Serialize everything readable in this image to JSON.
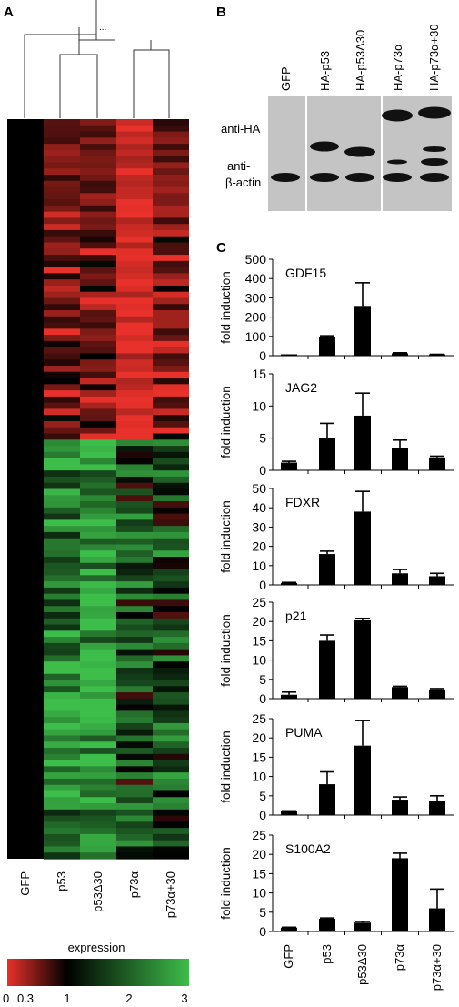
{
  "panel_labels": {
    "a": "A",
    "b": "B",
    "c": "C"
  },
  "heatmap": {
    "columns": [
      "GFP",
      "p53",
      "p53Δ30",
      "p73α",
      "p73α+30"
    ],
    "dendrogram_ellipsis": "...",
    "legend_title": "expression",
    "legend_ticks": [
      "0",
      "0.3",
      "1",
      "2",
      "3"
    ],
    "colors": {
      "low": "#e8312a",
      "mid": "#000000",
      "high": "#3dbd4a"
    }
  },
  "western": {
    "lanes": [
      "GFP",
      "HA-p53",
      "HA-p53Δ30",
      "HA-p73α",
      "HA-p73α+30"
    ],
    "row_labels": [
      "anti-HA",
      "anti-",
      "β-actin"
    ]
  },
  "bar_axis": {
    "ylabel": "fold induction",
    "categories": [
      "GFP",
      "p53",
      "p53Δ30",
      "p73α",
      "p73α+30"
    ]
  },
  "chart_data": [
    {
      "type": "bar",
      "title": "GDF15",
      "ylabel": "fold induction",
      "categories": [
        "GFP",
        "p53",
        "p53Δ30",
        "p73α",
        "p73α+30"
      ],
      "values": [
        1,
        95,
        258,
        12,
        5
      ],
      "errors": [
        0,
        8,
        120,
        3,
        2
      ],
      "ylim": [
        0,
        500
      ],
      "yticks": [
        "0",
        "100",
        "200",
        "300",
        "400",
        "500"
      ]
    },
    {
      "type": "bar",
      "title": "JAG2",
      "ylabel": "fold induction",
      "categories": [
        "GFP",
        "p53",
        "p53Δ30",
        "p73α",
        "p73α+30"
      ],
      "values": [
        1.2,
        5,
        8.5,
        3.5,
        2
      ],
      "errors": [
        0.2,
        2.3,
        3.5,
        1.2,
        0.2
      ],
      "ylim": [
        0,
        15
      ],
      "yticks": [
        "0",
        "5",
        "10",
        "15"
      ]
    },
    {
      "type": "bar",
      "title": "FDXR",
      "ylabel": "fold induction",
      "categories": [
        "GFP",
        "p53",
        "p53Δ30",
        "p73α",
        "p73α+30"
      ],
      "values": [
        1,
        16,
        38,
        6,
        4.5
      ],
      "errors": [
        0.3,
        1.5,
        10.5,
        2,
        1.5
      ],
      "ylim": [
        0,
        50
      ],
      "yticks": [
        "0",
        "10",
        "20",
        "30",
        "40",
        "50"
      ]
    },
    {
      "type": "bar",
      "title": "p21",
      "ylabel": "fold induction",
      "categories": [
        "GFP",
        "p53",
        "p53Δ30",
        "p73α",
        "p73α+30"
      ],
      "values": [
        1,
        15,
        20.3,
        3,
        2.4
      ],
      "errors": [
        0.7,
        1.5,
        0.5,
        0.2,
        0.2
      ],
      "ylim": [
        0,
        25
      ],
      "yticks": [
        "0",
        "5",
        "10",
        "15",
        "20",
        "25"
      ]
    },
    {
      "type": "bar",
      "title": "PUMA",
      "ylabel": "fold induction",
      "categories": [
        "GFP",
        "p53",
        "p53Δ30",
        "p73α",
        "p73α+30"
      ],
      "values": [
        1,
        8,
        18,
        4,
        3.7
      ],
      "errors": [
        0.1,
        3.2,
        6.5,
        0.7,
        1.3
      ],
      "ylim": [
        0,
        25
      ],
      "yticks": [
        "0",
        "5",
        "10",
        "15",
        "20",
        "25"
      ]
    },
    {
      "type": "bar",
      "title": "S100A2",
      "ylabel": "fold induction",
      "categories": [
        "GFP",
        "p53",
        "p53Δ30",
        "p73α",
        "p73α+30"
      ],
      "values": [
        1,
        3.3,
        2.3,
        19,
        6
      ],
      "errors": [
        0.1,
        0.2,
        0.3,
        1.3,
        5
      ],
      "ylim": [
        0,
        25
      ],
      "yticks": [
        "0",
        "5",
        "10",
        "15",
        "20",
        "25"
      ]
    }
  ]
}
